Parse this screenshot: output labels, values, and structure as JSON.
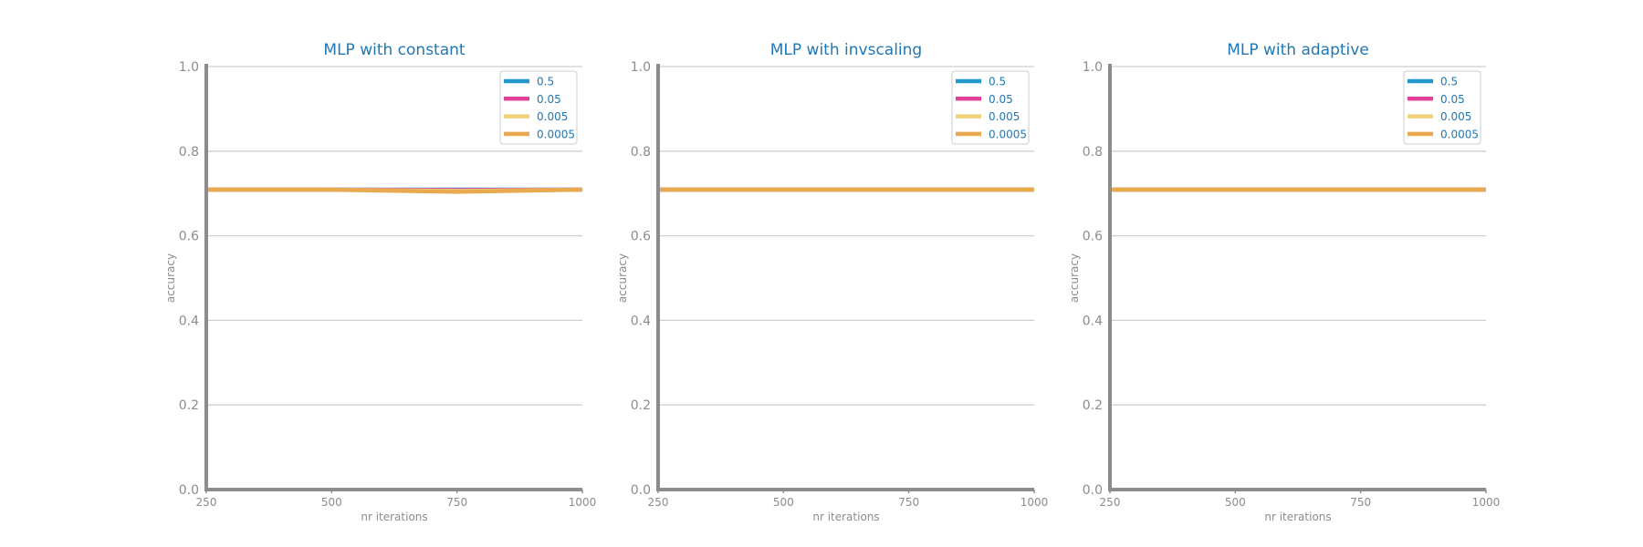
{
  "chart_data": [
    {
      "type": "line",
      "title": "MLP with constant",
      "xlabel": "nr iterations",
      "ylabel": "accuracy",
      "xlim": [
        250,
        1000
      ],
      "ylim": [
        0.0,
        1.0
      ],
      "xticks": [
        250,
        500,
        750,
        1000
      ],
      "yticks": [
        "0.0",
        "0.2",
        "0.4",
        "0.6",
        "0.8",
        "1.0"
      ],
      "grid": "horizontal",
      "legend_position": "top-right",
      "x": [
        250,
        500,
        750,
        1000
      ],
      "series": [
        {
          "name": "0.5",
          "color": "#2196cf",
          "values": [
            0.709,
            0.709,
            0.709,
            0.709
          ]
        },
        {
          "name": "0.05",
          "color": "#e4409a",
          "values": [
            0.709,
            0.709,
            0.708,
            0.709
          ]
        },
        {
          "name": "0.005",
          "color": "#efd279",
          "values": [
            0.709,
            0.709,
            0.706,
            0.709
          ]
        },
        {
          "name": "0.0005",
          "color": "#e8a94f",
          "values": [
            0.709,
            0.709,
            0.704,
            0.709
          ]
        }
      ]
    },
    {
      "type": "line",
      "title": "MLP with invscaling",
      "xlabel": "nr iterations",
      "ylabel": "accuracy",
      "xlim": [
        250,
        1000
      ],
      "ylim": [
        0.0,
        1.0
      ],
      "xticks": [
        250,
        500,
        750,
        1000
      ],
      "yticks": [
        "0.0",
        "0.2",
        "0.4",
        "0.6",
        "0.8",
        "1.0"
      ],
      "grid": "horizontal",
      "legend_position": "top-right",
      "x": [
        250,
        500,
        750,
        1000
      ],
      "series": [
        {
          "name": "0.5",
          "color": "#2196cf",
          "values": [
            0.709,
            0.709,
            0.709,
            0.709
          ]
        },
        {
          "name": "0.05",
          "color": "#e4409a",
          "values": [
            0.709,
            0.709,
            0.709,
            0.709
          ]
        },
        {
          "name": "0.005",
          "color": "#efd279",
          "values": [
            0.709,
            0.709,
            0.709,
            0.709
          ]
        },
        {
          "name": "0.0005",
          "color": "#e8a94f",
          "values": [
            0.709,
            0.709,
            0.709,
            0.709
          ]
        }
      ]
    },
    {
      "type": "line",
      "title": "MLP with adaptive",
      "xlabel": "nr iterations",
      "ylabel": "accuracy",
      "xlim": [
        250,
        1000
      ],
      "ylim": [
        0.0,
        1.0
      ],
      "xticks": [
        250,
        500,
        750,
        1000
      ],
      "yticks": [
        "0.0",
        "0.2",
        "0.4",
        "0.6",
        "0.8",
        "1.0"
      ],
      "grid": "horizontal",
      "legend_position": "top-right",
      "x": [
        250,
        500,
        750,
        1000
      ],
      "series": [
        {
          "name": "0.5",
          "color": "#2196cf",
          "values": [
            0.709,
            0.709,
            0.709,
            0.709
          ]
        },
        {
          "name": "0.05",
          "color": "#e4409a",
          "values": [
            0.709,
            0.709,
            0.709,
            0.709
          ]
        },
        {
          "name": "0.005",
          "color": "#efd279",
          "values": [
            0.709,
            0.709,
            0.709,
            0.709
          ]
        },
        {
          "name": "0.0005",
          "color": "#e8a94f",
          "values": [
            0.709,
            0.709,
            0.709,
            0.709
          ]
        }
      ]
    }
  ]
}
